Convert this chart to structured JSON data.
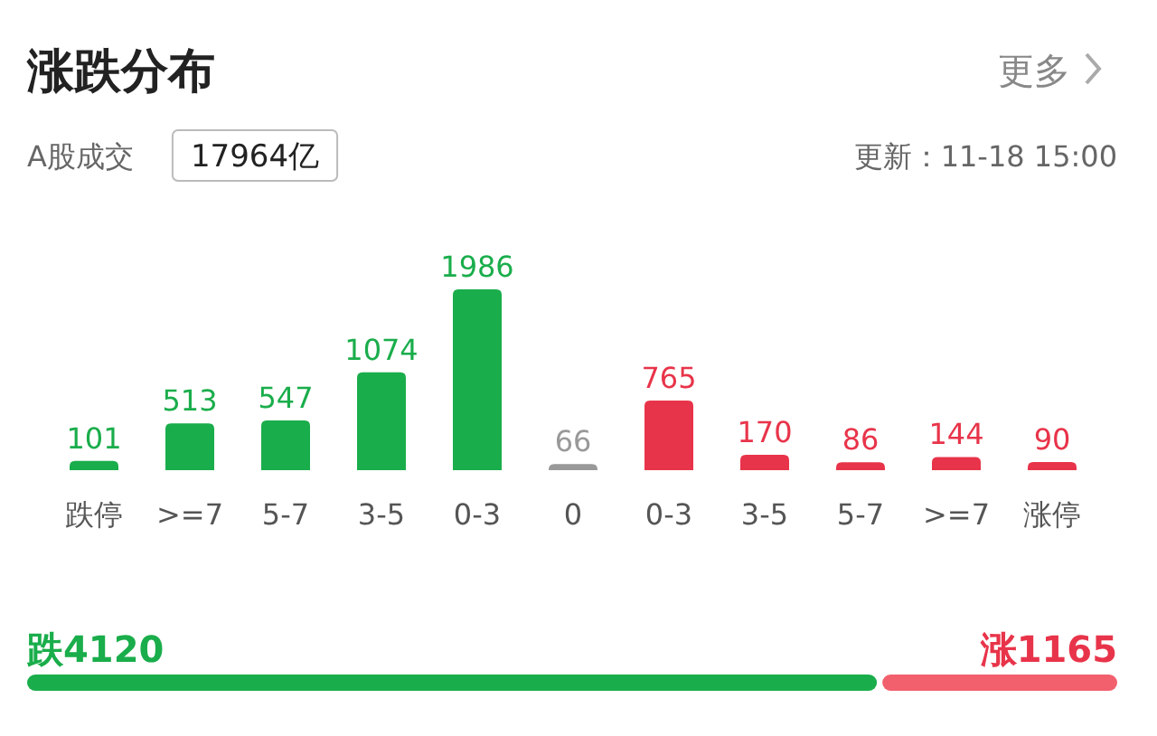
{
  "chart_data": [
    {
      "type": "bar",
      "title": "涨跌分布",
      "annotations": [
        "A股成交",
        "17964亿",
        "更新：11-18 15:00",
        "更多"
      ],
      "categories": [
        "跌停",
        ">=7",
        "5-7",
        "3-5",
        "0-3",
        "0",
        "0-3",
        "3-5",
        "5-7",
        ">=7",
        "涨停"
      ],
      "values": [
        101,
        513,
        547,
        1074,
        1986,
        66,
        765,
        170,
        86,
        144,
        90
      ],
      "colors": [
        "#1aad4b",
        "#1aad4b",
        "#1aad4b",
        "#1aad4b",
        "#1aad4b",
        "#999999",
        "#e8344a",
        "#e8344a",
        "#e8344a",
        "#e8344a",
        "#e8344a"
      ],
      "data_labels": true
    },
    {
      "type": "bar",
      "orientation": "horizontal",
      "stacked": true,
      "categories": [
        null
      ],
      "series": [
        {
          "color": "#1aad4b",
          "values": [
            4120
          ],
          "value_labels": [
            "跌4120"
          ]
        },
        {
          "color": "#f2606d",
          "values": [
            1165
          ],
          "value_labels": [
            "涨1165"
          ]
        }
      ]
    }
  ]
}
